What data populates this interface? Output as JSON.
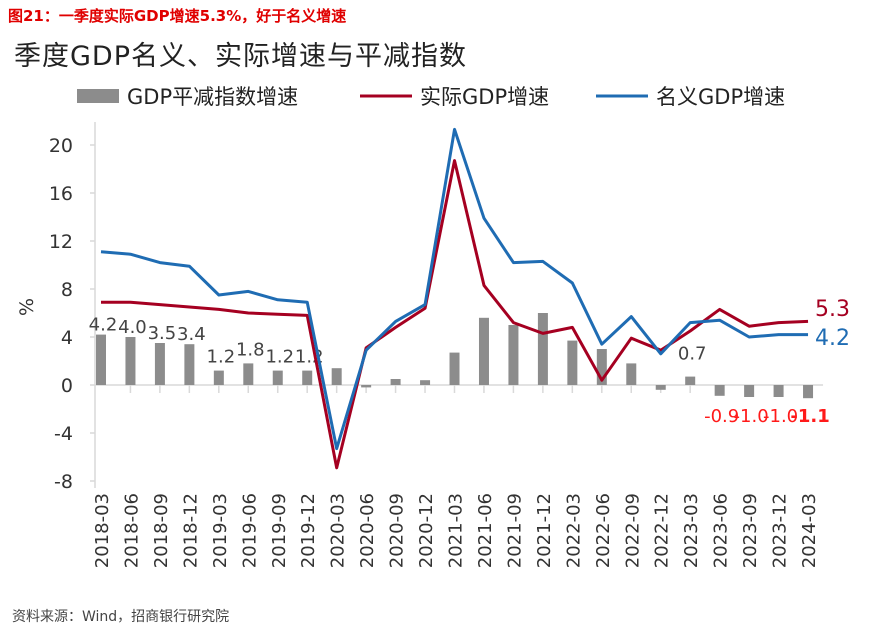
{
  "figure_title": "图21：一季度实际GDP增速5.3%，好于名义增速",
  "source": "资料来源：Wind，招商银行研究院",
  "colors": {
    "deflator": "#8c8c8c",
    "real": "#a50021",
    "nominal": "#1f6cb3",
    "negative_label": "#ff1a1a"
  },
  "chart_data": {
    "type": "bar+line",
    "title": "季度GDP名义、实际增速与平减指数",
    "ylabel": "%",
    "ylim": [
      -8,
      22
    ],
    "yticks": [
      -8,
      -4,
      0,
      4,
      8,
      12,
      16,
      20
    ],
    "legend_position": "top",
    "categories": [
      "2018-03",
      "2018-06",
      "2018-09",
      "2018-12",
      "2019-03",
      "2019-06",
      "2019-09",
      "2019-12",
      "2020-03",
      "2020-06",
      "2020-09",
      "2020-12",
      "2021-03",
      "2021-06",
      "2021-09",
      "2021-12",
      "2022-03",
      "2022-06",
      "2022-09",
      "2022-12",
      "2023-03",
      "2023-06",
      "2023-09",
      "2023-12",
      "2024-03"
    ],
    "series": [
      {
        "name": "GDP平减指数增速",
        "kind": "bar",
        "values": [
          4.2,
          4.0,
          3.5,
          3.4,
          1.2,
          1.8,
          1.2,
          1.2,
          1.4,
          -0.2,
          0.5,
          0.4,
          2.7,
          5.6,
          5.0,
          6.0,
          3.7,
          3.0,
          1.8,
          -0.4,
          0.7,
          -0.9,
          -1.0,
          -1.0,
          -1.1
        ],
        "data_labels": {
          "0": "4.2",
          "1": "4.0",
          "2": "3.5",
          "3": "3.4",
          "4": "1.2",
          "5": "1.8",
          "6": "1.2",
          "7": "1.2",
          "20": "0.7",
          "21": "-0.9",
          "22": "-1.0",
          "23": "-1.0",
          "24": "-1.1"
        }
      },
      {
        "name": "实际GDP增速",
        "kind": "line",
        "values": [
          6.9,
          6.9,
          6.7,
          6.5,
          6.3,
          6.0,
          5.9,
          5.8,
          -6.9,
          3.1,
          4.8,
          6.4,
          18.7,
          8.3,
          5.2,
          4.3,
          4.8,
          0.4,
          3.9,
          2.9,
          4.5,
          6.3,
          4.9,
          5.2,
          5.3
        ],
        "end_label": "5.3"
      },
      {
        "name": "名义GDP增速",
        "kind": "line",
        "values": [
          11.1,
          10.9,
          10.2,
          9.9,
          7.5,
          7.8,
          7.1,
          6.9,
          -5.3,
          2.9,
          5.3,
          6.7,
          21.3,
          13.9,
          10.2,
          10.3,
          8.5,
          3.4,
          5.7,
          2.6,
          5.2,
          5.4,
          4.0,
          4.2,
          4.2
        ],
        "end_label": "4.2"
      }
    ]
  }
}
